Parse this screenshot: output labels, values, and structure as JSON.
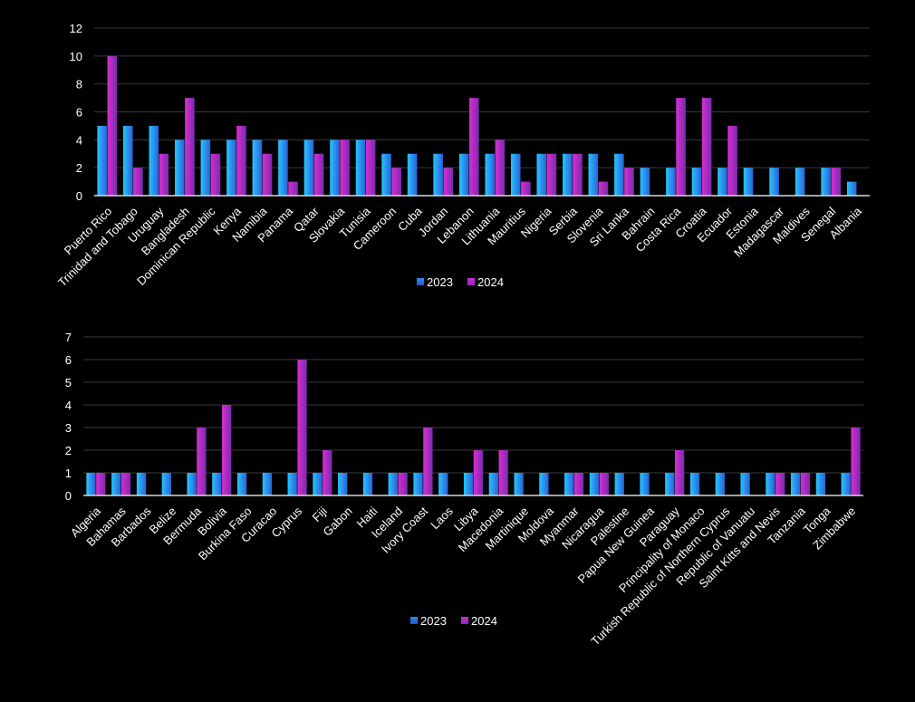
{
  "colors": {
    "background": "#000000",
    "grid": "#3a3a3a",
    "axis": "#d9d9d9",
    "text": "#ffffff"
  },
  "chart_data": [
    {
      "type": "bar",
      "title": "",
      "xlabel": "",
      "ylabel": "",
      "ylim": [
        0,
        12
      ],
      "yticks": [
        0,
        2,
        4,
        6,
        8,
        10,
        12
      ],
      "grid": true,
      "legend_position": "bottom",
      "categories": [
        "Puerto Rico",
        "Trinidad and Tobago",
        "Uruguay",
        "Bangladesh",
        "Dominican Republic",
        "Kenya",
        "Namibia",
        "Panama",
        "Qatar",
        "Slovakia",
        "Tunisia",
        "Cameroon",
        "Cuba",
        "Jordan",
        "Lebanon",
        "Lithuania",
        "Mauritius",
        "Nigeria",
        "Serbia",
        "Slovenia",
        "Sri Lanka",
        "Bahrain",
        "Costa Rica",
        "Croatia",
        "Ecuador",
        "Estonia",
        "Madagascar",
        "Maldives",
        "Senegal",
        "Albania"
      ],
      "series": [
        {
          "name": "2023",
          "color": "#1fa3f5",
          "values": [
            5,
            5,
            5,
            4,
            4,
            4,
            4,
            4,
            4,
            4,
            4,
            3,
            3,
            3,
            3,
            3,
            3,
            3,
            3,
            3,
            3,
            2,
            2,
            2,
            2,
            2,
            2,
            2,
            2,
            1
          ]
        },
        {
          "name": "2024",
          "color": "#c41ebf",
          "values": [
            10,
            2,
            3,
            7,
            3,
            5,
            3,
            1,
            3,
            4,
            4,
            2,
            0,
            2,
            7,
            4,
            1,
            3,
            3,
            1,
            2,
            0,
            7,
            7,
            5,
            0,
            0,
            0,
            2,
            0
          ]
        }
      ]
    },
    {
      "type": "bar",
      "title": "",
      "xlabel": "",
      "ylabel": "",
      "ylim": [
        0,
        7
      ],
      "yticks": [
        0,
        1,
        2,
        3,
        4,
        5,
        6,
        7
      ],
      "grid": true,
      "legend_position": "bottom",
      "categories": [
        "Algeria",
        "Bahamas",
        "Barbados",
        "Belize",
        "Bermuda",
        "Bolivia",
        "Burkina Faso",
        "Curacao",
        "Cyprus",
        "Fiji",
        "Gabon",
        "Haiti",
        "Iceland",
        "Ivory Coast",
        "Laos",
        "Libya",
        "Macedonia",
        "Martinique",
        "Moldova",
        "Myanmar",
        "Nicaragua",
        "Palestine",
        "Papua New Guinea",
        "Paraguay",
        "Principality of Monaco",
        "Turkish Republic of Northern Cyprus",
        "Republic of Vanuatu",
        "Saint Kitts and Nevis",
        "Tanzania",
        "Tonga",
        "Zimbabwe"
      ],
      "series": [
        {
          "name": "2023",
          "color": "#1fa3f5",
          "values": [
            1,
            1,
            1,
            1,
            1,
            1,
            1,
            1,
            1,
            1,
            1,
            1,
            1,
            1,
            1,
            1,
            1,
            1,
            1,
            1,
            1,
            1,
            1,
            1,
            1,
            1,
            1,
            1,
            1,
            1,
            1
          ]
        },
        {
          "name": "2024",
          "color": "#c41ebf",
          "values": [
            1,
            1,
            0,
            0,
            3,
            4,
            0,
            0,
            6,
            2,
            0,
            0,
            1,
            3,
            0,
            2,
            2,
            0,
            0,
            1,
            1,
            0,
            0,
            2,
            0,
            0,
            0,
            1,
            1,
            0,
            3
          ]
        }
      ]
    }
  ]
}
